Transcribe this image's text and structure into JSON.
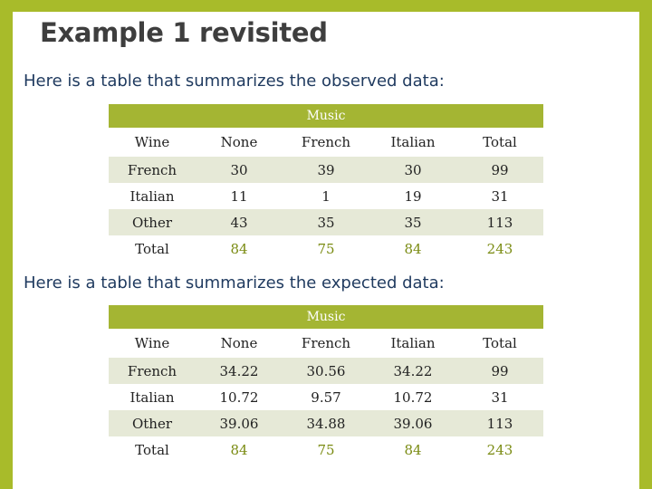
{
  "slide": {
    "title": "Example 1 revisited",
    "caption_observed": "Here is a table that summarizes the observed data:",
    "caption_expected": "Here is a table that summarizes the expected data:"
  },
  "observed": {
    "group_label": "Music",
    "headers": [
      "Wine",
      "None",
      "French",
      "Italian",
      "Total"
    ],
    "rows": [
      [
        "French",
        "30",
        "39",
        "30",
        "99"
      ],
      [
        "Italian",
        "11",
        "1",
        "19",
        "31"
      ],
      [
        "Other",
        "43",
        "35",
        "35",
        "113"
      ],
      [
        "Total",
        "84",
        "75",
        "84",
        "243"
      ]
    ]
  },
  "expected": {
    "group_label": "Music",
    "headers": [
      "Wine",
      "None",
      "French",
      "Italian",
      "Total"
    ],
    "rows": [
      [
        "French",
        "34.22",
        "30.56",
        "34.22",
        "99"
      ],
      [
        "Italian",
        "10.72",
        "9.57",
        "10.72",
        "31"
      ],
      [
        "Other",
        "39.06",
        "34.88",
        "39.06",
        "113"
      ],
      [
        "Total",
        "84",
        "75",
        "84",
        "243"
      ]
    ]
  },
  "colors": {
    "frame": "#a8bb2a",
    "header_band": "#a4b533",
    "row_shade": "#e6e9d7",
    "total_text": "#7a8b12",
    "caption_text": "#1f3a5f"
  }
}
